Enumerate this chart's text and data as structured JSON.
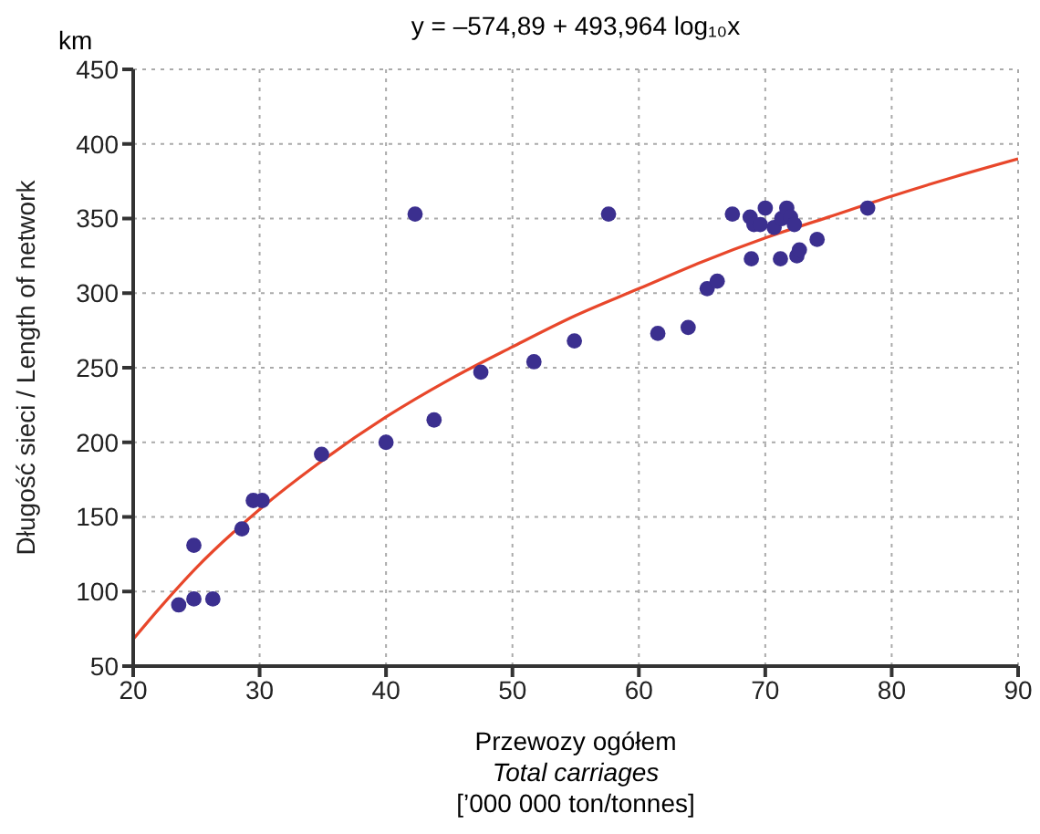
{
  "chart_data": {
    "type": "scatter",
    "title": "y = –574,89 + 493,964 log₁₀x",
    "xlabel": "Przewozy ogółem\nTotal carriages\n[’000 000 ton/tonnes]",
    "ylabel": "Długość sieci / Length of network",
    "annotations": [
      "km"
    ],
    "series": [
      {
        "marker": "circle",
        "color": "#3b2f8f",
        "x": [
          23.6,
          24.8,
          24.8,
          26.3,
          28.6,
          29.5,
          30.2,
          34.9,
          40,
          42.3,
          43.8,
          47.5,
          51.7,
          54.9,
          57.6,
          61.5,
          63.9,
          65.4,
          66.2,
          67.4,
          68.9,
          68.8,
          69.1,
          69.6,
          70,
          70.7,
          71.2,
          71.3,
          71.7,
          72.0,
          72.3,
          72.5,
          72.7,
          74.1,
          78.1
        ],
        "values": [
          91,
          131,
          95,
          95,
          142,
          161,
          161,
          192,
          200,
          353,
          215,
          247,
          254,
          268,
          353,
          273,
          277,
          303,
          308,
          353,
          323,
          351,
          346,
          346,
          357,
          344,
          323,
          350,
          357,
          351,
          346,
          325,
          329,
          336,
          357
        ]
      },
      {
        "type": "line",
        "marker": "none",
        "color": "#e8472b",
        "x": [
          20,
          22,
          25,
          30,
          35,
          40,
          45,
          50,
          55,
          60,
          65,
          70,
          75,
          80,
          85,
          90
        ],
        "values": [
          68,
          88,
          116,
          155,
          188,
          217,
          242,
          264,
          285,
          303,
          321,
          337,
          351,
          365,
          378,
          390
        ]
      }
    ],
    "xlim": [
      20,
      90
    ],
    "xticks": [
      20,
      30,
      40,
      50,
      60,
      70,
      80,
      90
    ],
    "ylim": [
      50,
      450
    ],
    "yticks": [
      50,
      100,
      150,
      200,
      250,
      300,
      350,
      400,
      450
    ],
    "grid": true,
    "line_style": "solid"
  }
}
